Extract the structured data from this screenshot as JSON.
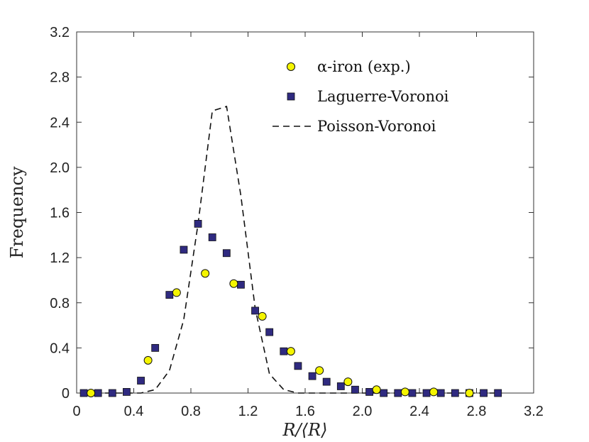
{
  "chart_data": {
    "type": "scatter",
    "title": "",
    "xlabel": "R/⟨R⟩",
    "ylabel": "Frequency",
    "xlim": [
      0,
      3.2
    ],
    "ylim": [
      0,
      3.2
    ],
    "xticks": [
      "0",
      "0.4",
      "0.8",
      "1.2",
      "1.6",
      "2.0",
      "2.4",
      "2.8",
      "3.2"
    ],
    "yticks": [
      "0",
      "0.4",
      "0.8",
      "1.2",
      "1.6",
      "2.0",
      "2.4",
      "2.8",
      "3.2"
    ],
    "legend_position": "top-right",
    "series": [
      {
        "name": "α-iron (exp.)",
        "marker": "circle",
        "color": "#f5f500",
        "x": [
          0.1,
          0.5,
          0.7,
          0.9,
          1.1,
          1.3,
          1.5,
          1.7,
          1.9,
          2.1,
          2.3,
          2.5,
          2.75
        ],
        "y": [
          0.0,
          0.29,
          0.89,
          1.06,
          0.97,
          0.68,
          0.37,
          0.2,
          0.1,
          0.03,
          0.01,
          0.01,
          0.0
        ]
      },
      {
        "name": "Laguerre-Voronoi",
        "marker": "square",
        "color": "#2f2a80",
        "x": [
          0.05,
          0.15,
          0.25,
          0.35,
          0.45,
          0.55,
          0.65,
          0.75,
          0.85,
          0.95,
          1.05,
          1.15,
          1.25,
          1.35,
          1.45,
          1.55,
          1.65,
          1.75,
          1.85,
          1.95,
          2.05,
          2.15,
          2.25,
          2.35,
          2.45,
          2.55,
          2.65,
          2.75,
          2.85,
          2.95
        ],
        "y": [
          0.0,
          0.0,
          0.0,
          0.01,
          0.11,
          0.4,
          0.87,
          1.27,
          1.5,
          1.38,
          1.24,
          0.96,
          0.73,
          0.54,
          0.37,
          0.24,
          0.15,
          0.1,
          0.06,
          0.03,
          0.01,
          0.0,
          0.0,
          0.0,
          0.0,
          0.0,
          0.0,
          0.0,
          0.0,
          0.0
        ]
      },
      {
        "name": "Poisson-Voronoi",
        "marker": "dashed-line",
        "color": "#111111",
        "x": [
          0.05,
          0.15,
          0.25,
          0.35,
          0.45,
          0.55,
          0.65,
          0.75,
          0.85,
          0.95,
          1.05,
          1.15,
          1.25,
          1.35,
          1.45,
          1.55,
          1.65,
          1.75,
          1.85,
          1.95,
          2.05,
          2.15,
          2.25,
          2.35,
          2.45,
          2.55,
          2.65,
          2.75,
          2.85,
          2.95
        ],
        "y": [
          0.0,
          0.0,
          0.0,
          0.0,
          0.0,
          0.03,
          0.2,
          0.65,
          1.5,
          2.5,
          2.54,
          1.75,
          0.75,
          0.17,
          0.03,
          0.0,
          0.0,
          0.0,
          0.0,
          0.0,
          0.0,
          0.0,
          0.0,
          0.0,
          0.0,
          0.0,
          0.0,
          0.0,
          0.0,
          0.0
        ]
      }
    ]
  }
}
